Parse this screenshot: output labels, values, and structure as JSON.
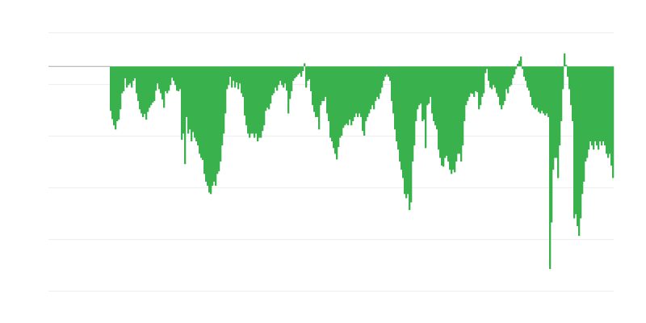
{
  "chart_data": {
    "type": "area",
    "title": "",
    "xlabel": "",
    "ylabel": "",
    "grid": true,
    "grid_step": 10,
    "baseline": 0,
    "xlim": [
      -38.5,
      311.5
    ],
    "ylim": [
      -43.4,
      6.6
    ],
    "colors": {
      "fill": "#39b14c",
      "baseline": "#aaaaaa",
      "grid": "#eeeeee"
    },
    "values": [
      -8.6,
      -10.2,
      -11.4,
      -12.2,
      -10.6,
      -10.3,
      -8.3,
      -5.2,
      -4.8,
      -2.3,
      -4.1,
      -3.6,
      -3.3,
      -4.1,
      -2.8,
      -2.3,
      -5.2,
      -6.7,
      -8.3,
      -9.1,
      -9.8,
      -9.2,
      -10.3,
      -8.8,
      -8.0,
      -7.5,
      -7.0,
      -6.7,
      -4.7,
      -3.3,
      -4.4,
      -5.2,
      -6.4,
      -8.0,
      -4.8,
      -5.2,
      -4.7,
      -3.6,
      -2.2,
      -2.8,
      -3.6,
      -4.7,
      -4.8,
      -4.4,
      -14.2,
      -13.0,
      -18.9,
      -9.8,
      -13.0,
      -12.2,
      -14.5,
      -12.7,
      -13.8,
      -14.5,
      -15.3,
      -16.9,
      -17.7,
      -18.1,
      -20.8,
      -22.3,
      -23.1,
      -24.4,
      -24.7,
      -23.1,
      -22.3,
      -23.1,
      -20.8,
      -20.3,
      -18.4,
      -15.3,
      -13.0,
      -9.1,
      -4.4,
      -3.6,
      -2.0,
      -4.1,
      -2.8,
      -4.1,
      -3.1,
      -4.4,
      -3.3,
      -5.2,
      -5.9,
      -9.5,
      -11.4,
      -13.0,
      -13.8,
      -13.0,
      -13.0,
      -13.8,
      -13.0,
      -14.5,
      -13.8,
      -13.8,
      -12.5,
      -11.4,
      -8.6,
      -8.0,
      -8.3,
      -7.2,
      -5.6,
      -5.2,
      -4.1,
      -4.7,
      -3.6,
      -2.8,
      -3.6,
      -4.1,
      -3.3,
      -4.7,
      -9.1,
      -6.3,
      -4.8,
      -2.8,
      -2.3,
      -2.0,
      -1.6,
      -1.3,
      -2.0,
      -0.9,
      0.6,
      -4.1,
      -2.8,
      -2.5,
      -4.8,
      -7.5,
      -8.8,
      -9.8,
      -9.8,
      -12.2,
      -7.5,
      -6.7,
      -6.7,
      -5.9,
      -9.1,
      -10.6,
      -13.8,
      -14.5,
      -15.8,
      -16.9,
      -18.0,
      -15.6,
      -13.8,
      -13.4,
      -11.9,
      -11.4,
      -11.1,
      -11.4,
      -10.3,
      -11.4,
      -10.6,
      -9.8,
      -9.1,
      -9.8,
      -9.1,
      -9.8,
      -12.5,
      -13.4,
      -10.6,
      -9.8,
      -9.1,
      -8.3,
      -7.5,
      -8.3,
      -6.7,
      -5.9,
      -6.3,
      -5.2,
      -4.1,
      -2.8,
      -2.0,
      -1.6,
      -2.0,
      -2.8,
      -6.7,
      -9.1,
      -12.2,
      -14.5,
      -16.1,
      -18.4,
      -20.0,
      -21.6,
      -24.7,
      -25.5,
      -24.7,
      -27.8,
      -26.3,
      -18.4,
      -15.3,
      -10.6,
      -8.3,
      -7.5,
      -7.2,
      -10.6,
      -10.3,
      -15.8,
      -7.5,
      -7.2,
      -5.9,
      -9.1,
      -10.6,
      -11.4,
      -12.2,
      -16.1,
      -17.7,
      -19.2,
      -19.4,
      -17.7,
      -17.3,
      -18.4,
      -20.0,
      -20.8,
      -20.0,
      -20.5,
      -18.4,
      -16.9,
      -16.9,
      -18.4,
      -15.3,
      -10.6,
      -7.5,
      -6.7,
      -5.9,
      -5.2,
      -5.3,
      -5.9,
      -4.8,
      -5.0,
      -8.3,
      -7.5,
      -5.9,
      -5.2,
      -1.3,
      -0.5,
      -2.8,
      -4.1,
      -4.4,
      -3.6,
      -4.1,
      -5.2,
      -5.9,
      -7.5,
      -8.3,
      -7.5,
      -6.7,
      -4.4,
      -5.2,
      -3.9,
      -3.6,
      -2.3,
      -1.6,
      -0.5,
      0.5,
      1.1,
      1.9,
      -0.5,
      -2.0,
      -2.8,
      -4.1,
      -4.7,
      -5.9,
      -7.5,
      -8.0,
      -8.3,
      -8.0,
      -8.8,
      -9.1,
      -8.6,
      -9.1,
      -9.5,
      -9.1,
      -9.8,
      -39.2,
      -30.2,
      -20.0,
      -17.7,
      -17.7,
      -21.6,
      -15.3,
      -10.6,
      -4.4,
      2.5,
      0.3,
      -2.0,
      -4.4,
      -7.5,
      -10.6,
      -29.4,
      -28.6,
      -30.9,
      -32.8,
      -29.4,
      -24.7,
      -22.3,
      -18.4,
      -17.7,
      -16.1,
      -14.5,
      -15.3,
      -16.1,
      -14.5,
      -15.3,
      -16.1,
      -14.5,
      -15.3,
      -14.5,
      -15.3,
      -16.9,
      -17.7,
      -16.9,
      -19.2,
      -21.6
    ]
  }
}
